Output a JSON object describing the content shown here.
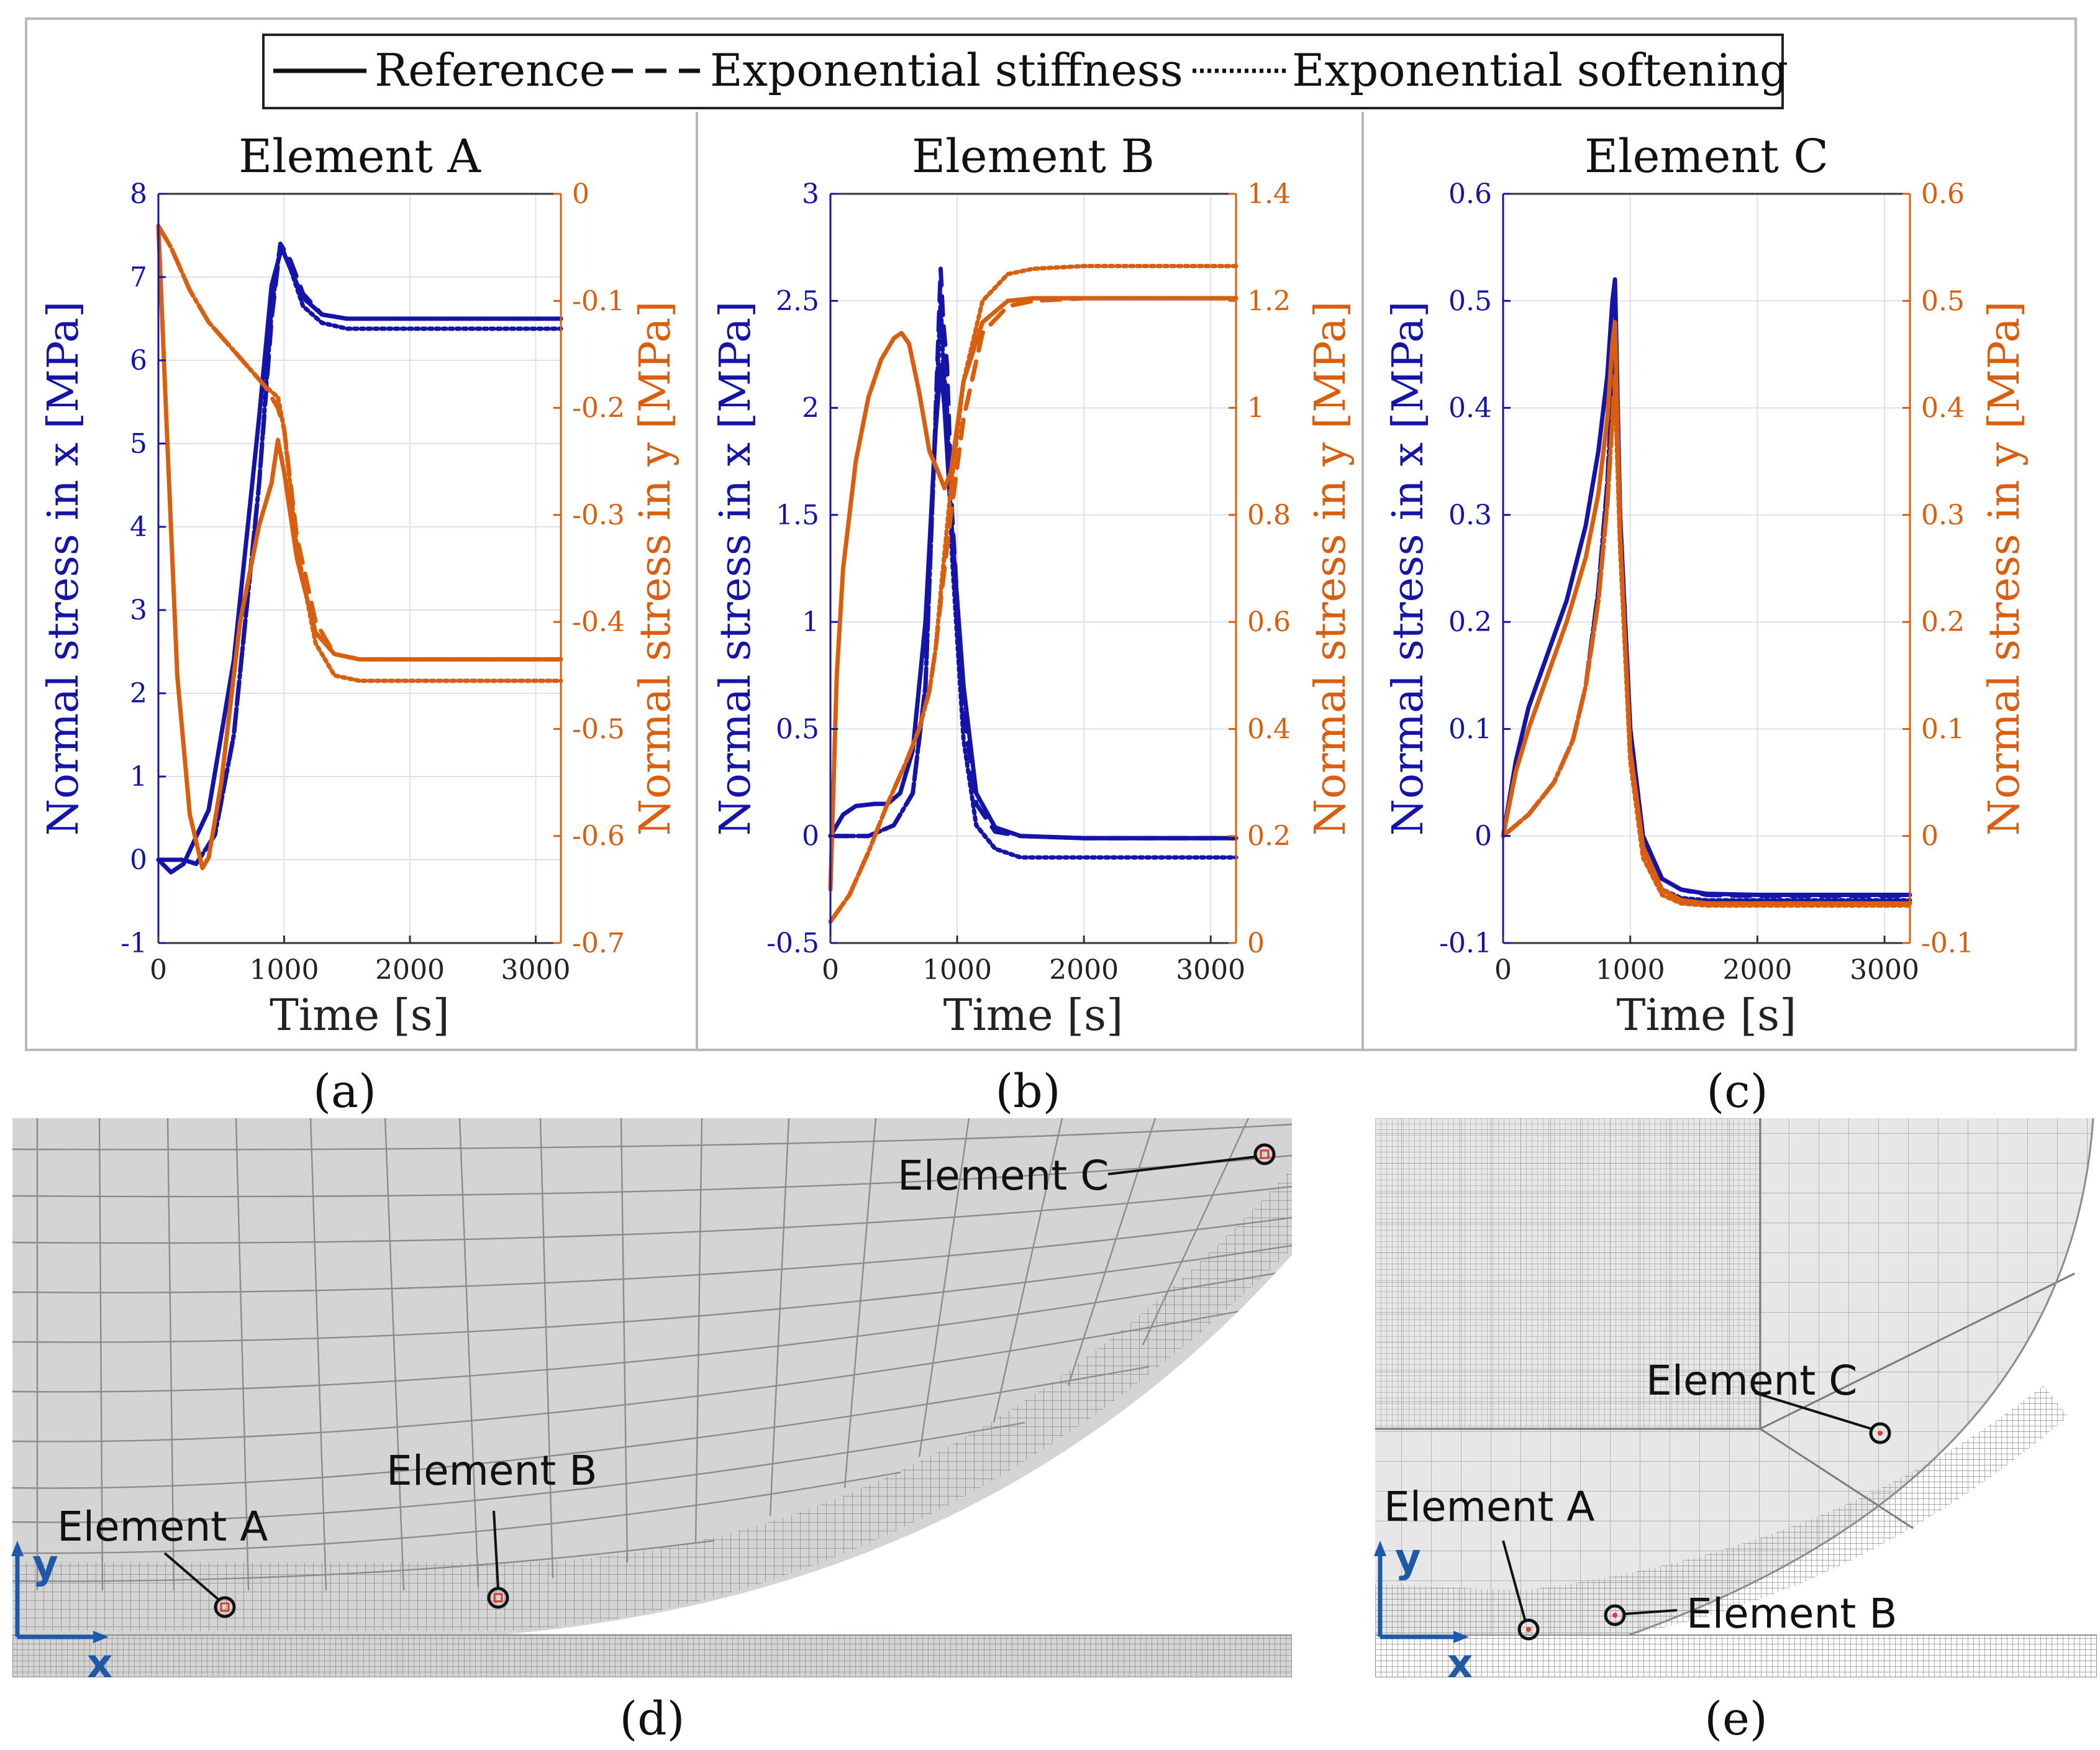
{
  "legend": {
    "entries": [
      {
        "label": "Reference",
        "style": "solid"
      },
      {
        "label": "Exponential stiffness",
        "style": "dashed"
      },
      {
        "label": "Exponential softening",
        "style": "dotted"
      }
    ]
  },
  "colors": {
    "x_series": "#1414a8",
    "y_series": "#d95f0e",
    "axis_x": "#1414a8",
    "axis_y": "#d95f0e",
    "mesh_fill": "#d4d4d4",
    "mesh_line": "#8c8c8c",
    "marker": "#e23a2a",
    "triad": "#1f5aa8"
  },
  "panels": {
    "a": {
      "label": "(a)"
    },
    "b": {
      "label": "(b)"
    },
    "c": {
      "label": "(c)"
    },
    "d": {
      "label": "(d)"
    },
    "e": {
      "label": "(e)"
    }
  },
  "mesh_d": {
    "element_a": "Element A",
    "element_b": "Element B",
    "element_c": "Element C",
    "axis_x": "x",
    "axis_y": "y"
  },
  "mesh_e": {
    "element_a": "Element A",
    "element_b": "Element B",
    "element_c": "Element C",
    "axis_x": "x",
    "axis_y": "y"
  },
  "chart_data": [
    {
      "type": "line",
      "title": "Element A",
      "xlabel": "Time [s]",
      "ylabel_left": "Normal stress in x [MPa]",
      "ylabel_right": "Normal stress in y [MPa]",
      "xlim": [
        0,
        3200
      ],
      "xticks": [
        0,
        1000,
        2000,
        3000
      ],
      "ylim_left": [
        -1,
        8
      ],
      "yticks_left": [
        -1,
        0,
        1,
        2,
        3,
        4,
        5,
        6,
        7,
        8
      ],
      "ylim_right": [
        -0.7,
        0
      ],
      "yticks_right": [
        -0.7,
        -0.6,
        -0.5,
        -0.4,
        -0.3,
        -0.2,
        -0.1,
        0
      ],
      "ytick_labels_right": [
        "-0.7",
        "-0.6",
        "-0.5",
        "-0.4",
        "-0.3",
        "-0.2",
        "-0.1",
        "0"
      ],
      "series": [
        {
          "name": "Reference (x)",
          "axis": "left",
          "style": "solid",
          "x": [
            0,
            100,
            200,
            400,
            600,
            800,
            900,
            980,
            1050,
            1150,
            1300,
            1500,
            2000,
            3200
          ],
          "y": [
            0,
            -0.15,
            -0.05,
            0.6,
            2.4,
            5.3,
            6.9,
            7.35,
            7.1,
            6.75,
            6.55,
            6.5,
            6.5,
            6.5
          ]
        },
        {
          "name": "Exponential stiffness (x)",
          "axis": "left",
          "style": "dashed",
          "x": [
            0,
            200,
            300,
            450,
            600,
            800,
            900,
            970,
            1050,
            1150,
            1300,
            1500,
            2000,
            3200
          ],
          "y": [
            0,
            0,
            -0.05,
            0.3,
            1.5,
            4.5,
            6.5,
            7.4,
            7.2,
            6.8,
            6.55,
            6.5,
            6.5,
            6.5
          ]
        },
        {
          "name": "Exponential softening (x)",
          "axis": "left",
          "style": "dotted",
          "x": [
            0,
            200,
            300,
            450,
            600,
            800,
            900,
            970,
            1050,
            1150,
            1300,
            1500,
            2000,
            3200
          ],
          "y": [
            0,
            0,
            -0.05,
            0.3,
            1.5,
            4.5,
            6.6,
            7.4,
            7.1,
            6.65,
            6.45,
            6.38,
            6.38,
            6.38
          ]
        },
        {
          "name": "Reference (y)",
          "axis": "right",
          "style": "solid",
          "x": [
            0,
            60,
            150,
            250,
            350,
            400,
            500,
            650,
            800,
            900,
            950,
            1000,
            1100,
            1250,
            1400,
            1600,
            2000,
            3200
          ],
          "y": [
            -0.03,
            -0.2,
            -0.45,
            -0.58,
            -0.63,
            -0.62,
            -0.55,
            -0.4,
            -0.31,
            -0.27,
            -0.23,
            -0.26,
            -0.34,
            -0.41,
            -0.43,
            -0.435,
            -0.435,
            -0.435
          ]
        },
        {
          "name": "Exponential stiffness (y)",
          "axis": "right",
          "style": "dashed",
          "x": [
            0,
            100,
            250,
            400,
            550,
            700,
            850,
            950,
            1000,
            1100,
            1250,
            1400,
            1600,
            2000,
            3200
          ],
          "y": [
            -0.03,
            -0.05,
            -0.09,
            -0.12,
            -0.14,
            -0.16,
            -0.18,
            -0.2,
            -0.22,
            -0.32,
            -0.4,
            -0.43,
            -0.435,
            -0.435,
            -0.435
          ]
        },
        {
          "name": "Exponential softening (y)",
          "axis": "right",
          "style": "dotted",
          "x": [
            0,
            100,
            250,
            400,
            550,
            700,
            850,
            950,
            1000,
            1100,
            1250,
            1400,
            1600,
            2000,
            3200
          ],
          "y": [
            -0.03,
            -0.05,
            -0.09,
            -0.12,
            -0.14,
            -0.16,
            -0.18,
            -0.19,
            -0.22,
            -0.33,
            -0.42,
            -0.45,
            -0.455,
            -0.455,
            -0.455
          ]
        }
      ]
    },
    {
      "type": "line",
      "title": "Element B",
      "xlabel": "Time [s]",
      "ylabel_left": "Normal stress in x [MPa]",
      "ylabel_right": "Normal stress in y [MPa]",
      "xlim": [
        0,
        3200
      ],
      "xticks": [
        0,
        1000,
        2000,
        3000
      ],
      "ylim_left": [
        -0.5,
        3
      ],
      "yticks_left": [
        -0.5,
        0,
        0.5,
        1,
        1.5,
        2,
        2.5,
        3
      ],
      "ylim_right": [
        0,
        1.4
      ],
      "yticks_right": [
        0,
        0.2,
        0.4,
        0.6,
        0.8,
        1,
        1.2,
        1.4
      ],
      "ytick_labels_right": [
        "0",
        "0.2",
        "0.4",
        "0.6",
        "0.8",
        "1",
        "1.2",
        "1.4"
      ],
      "series": [
        {
          "name": "Reference (x)",
          "axis": "left",
          "style": "solid",
          "x": [
            0,
            100,
            200,
            350,
            450,
            550,
            650,
            750,
            830,
            870,
            900,
            950,
            1050,
            1150,
            1300,
            1500,
            2000,
            3200
          ],
          "y": [
            0,
            0.1,
            0.14,
            0.15,
            0.15,
            0.2,
            0.4,
            1.0,
            1.9,
            2.2,
            2.0,
            1.5,
            0.7,
            0.2,
            0.04,
            0,
            -0.01,
            -0.01
          ]
        },
        {
          "name": "Exponential stiffness (x)",
          "axis": "left",
          "style": "dashed",
          "x": [
            0,
            300,
            500,
            650,
            750,
            820,
            870,
            890,
            920,
            960,
            1050,
            1150,
            1300,
            1500,
            2000,
            3200
          ],
          "y": [
            0,
            0,
            0.05,
            0.2,
            0.7,
            1.8,
            2.65,
            2.4,
            2.2,
            1.5,
            0.6,
            0.15,
            0.02,
            0,
            -0.01,
            -0.01
          ]
        },
        {
          "name": "Exponential softening (x)",
          "axis": "left",
          "style": "dotted",
          "x": [
            0,
            300,
            500,
            650,
            750,
            820,
            870,
            890,
            920,
            960,
            1050,
            1150,
            1300,
            1500,
            2000,
            3200
          ],
          "y": [
            0,
            0,
            0.05,
            0.2,
            0.7,
            1.8,
            2.5,
            2.2,
            2.0,
            1.3,
            0.45,
            0.05,
            -0.06,
            -0.1,
            -0.1,
            -0.1
          ]
        },
        {
          "name": "Reference (y)",
          "axis": "right",
          "style": "solid",
          "x": [
            0,
            50,
            100,
            200,
            300,
            400,
            500,
            560,
            620,
            700,
            780,
            850,
            900,
            950,
            1050,
            1200,
            1400,
            1600,
            2000,
            3200
          ],
          "y": [
            0.1,
            0.5,
            0.7,
            0.9,
            1.02,
            1.09,
            1.13,
            1.14,
            1.12,
            1.03,
            0.92,
            0.88,
            0.85,
            0.88,
            1.05,
            1.16,
            1.2,
            1.205,
            1.205,
            1.205
          ]
        },
        {
          "name": "Exponential stiffness (y)",
          "axis": "right",
          "style": "dashed",
          "x": [
            0,
            150,
            300,
            450,
            600,
            700,
            780,
            830,
            880,
            950,
            1050,
            1200,
            1400,
            1600,
            2000,
            3200
          ],
          "y": [
            0.04,
            0.09,
            0.17,
            0.26,
            0.34,
            0.4,
            0.47,
            0.55,
            0.66,
            0.8,
            0.98,
            1.14,
            1.19,
            1.2,
            1.205,
            1.205
          ]
        },
        {
          "name": "Exponential softening (y)",
          "axis": "right",
          "style": "dotted",
          "x": [
            0,
            150,
            300,
            450,
            600,
            700,
            780,
            830,
            880,
            950,
            1050,
            1200,
            1400,
            1600,
            2000,
            3200
          ],
          "y": [
            0.04,
            0.09,
            0.17,
            0.26,
            0.34,
            0.4,
            0.47,
            0.55,
            0.68,
            0.85,
            1.05,
            1.2,
            1.25,
            1.26,
            1.265,
            1.265
          ]
        }
      ]
    },
    {
      "type": "line",
      "title": "Element C",
      "xlabel": "Time [s]",
      "ylabel_left": "Normal stress in x [MPa]",
      "ylabel_right": "Normal stress in y [MPa]",
      "xlim": [
        0,
        3200
      ],
      "xticks": [
        0,
        1000,
        2000,
        3000
      ],
      "ylim_left": [
        -0.1,
        0.6
      ],
      "yticks_left": [
        -0.1,
        0,
        0.1,
        0.2,
        0.3,
        0.4,
        0.5,
        0.6
      ],
      "ylim_right": [
        -0.1,
        0.6
      ],
      "yticks_right": [
        -0.1,
        0,
        0.1,
        0.2,
        0.3,
        0.4,
        0.5,
        0.6
      ],
      "ytick_labels_right": [
        "-0.1",
        "0",
        "0.1",
        "0.2",
        "0.3",
        "0.4",
        "0.5",
        "0.6"
      ],
      "series": [
        {
          "name": "Reference (x)",
          "axis": "left",
          "style": "solid",
          "x": [
            0,
            100,
            200,
            350,
            500,
            650,
            750,
            820,
            860,
            880,
            920,
            1000,
            1100,
            1250,
            1400,
            1600,
            2000,
            3200
          ],
          "y": [
            0,
            0.07,
            0.12,
            0.17,
            0.22,
            0.29,
            0.36,
            0.43,
            0.5,
            0.52,
            0.3,
            0.1,
            0.0,
            -0.04,
            -0.05,
            -0.054,
            -0.055,
            -0.055
          ]
        },
        {
          "name": "Exponential stiffness (x)",
          "axis": "left",
          "style": "dashed",
          "x": [
            0,
            200,
            400,
            550,
            650,
            750,
            820,
            860,
            880,
            920,
            1000,
            1100,
            1250,
            1400,
            1600,
            2000,
            3200
          ],
          "y": [
            0,
            0.02,
            0.05,
            0.09,
            0.14,
            0.23,
            0.33,
            0.42,
            0.46,
            0.3,
            0.1,
            0.0,
            -0.04,
            -0.05,
            -0.055,
            -0.056,
            -0.056
          ]
        },
        {
          "name": "Exponential softening (x)",
          "axis": "left",
          "style": "dotted",
          "x": [
            0,
            200,
            400,
            550,
            650,
            750,
            820,
            860,
            880,
            920,
            1000,
            1100,
            1250,
            1400,
            1600,
            2000,
            3200
          ],
          "y": [
            0,
            0.02,
            0.05,
            0.09,
            0.14,
            0.23,
            0.33,
            0.42,
            0.45,
            0.29,
            0.09,
            -0.01,
            -0.05,
            -0.058,
            -0.06,
            -0.06,
            -0.06
          ]
        },
        {
          "name": "Reference (y)",
          "axis": "right",
          "style": "solid",
          "x": [
            0,
            100,
            200,
            350,
            500,
            650,
            750,
            820,
            860,
            880,
            920,
            1000,
            1100,
            1250,
            1400,
            1600,
            2000,
            3200
          ],
          "y": [
            0,
            0.06,
            0.1,
            0.15,
            0.2,
            0.26,
            0.32,
            0.39,
            0.46,
            0.48,
            0.28,
            0.08,
            -0.01,
            -0.05,
            -0.06,
            -0.063,
            -0.063,
            -0.063
          ]
        },
        {
          "name": "Exponential stiffness (y)",
          "axis": "right",
          "style": "dashed",
          "x": [
            0,
            200,
            400,
            550,
            650,
            750,
            820,
            860,
            880,
            920,
            1000,
            1100,
            1250,
            1400,
            1600,
            2000,
            3200
          ],
          "y": [
            0,
            0.02,
            0.05,
            0.09,
            0.14,
            0.22,
            0.31,
            0.39,
            0.43,
            0.28,
            0.08,
            -0.01,
            -0.05,
            -0.06,
            -0.063,
            -0.063,
            -0.063
          ]
        },
        {
          "name": "Exponential softening (y)",
          "axis": "right",
          "style": "dotted",
          "x": [
            0,
            200,
            400,
            550,
            650,
            750,
            820,
            860,
            880,
            920,
            1000,
            1100,
            1250,
            1400,
            1600,
            2000,
            3200
          ],
          "y": [
            0,
            0.02,
            0.05,
            0.09,
            0.14,
            0.22,
            0.31,
            0.39,
            0.42,
            0.27,
            0.07,
            -0.02,
            -0.055,
            -0.063,
            -0.065,
            -0.065,
            -0.065
          ]
        }
      ]
    }
  ]
}
